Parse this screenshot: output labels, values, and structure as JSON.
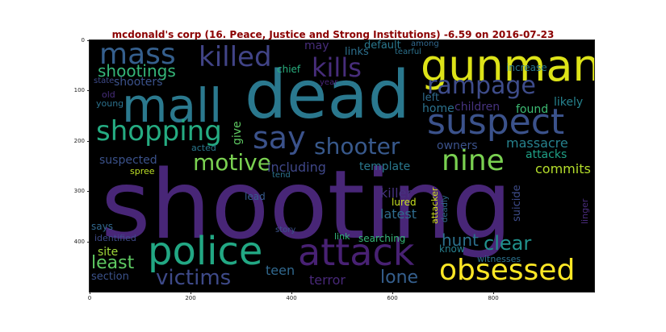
{
  "title": "mcdonald's corp (16. Peace, Justice and Strong Institutions) -6.59 on 2016-07-23",
  "axes": {
    "x_ticks": [
      "0",
      "200",
      "400",
      "600",
      "800"
    ],
    "y_ticks": [
      "0",
      "100",
      "200",
      "300",
      "400"
    ]
  },
  "words": [
    {
      "text": "shooting",
      "color": "#482677"
    },
    {
      "text": "dead",
      "color": "#2a788e"
    },
    {
      "text": "gunman",
      "color": "#dde318"
    },
    {
      "text": "mall",
      "color": "#2b798e"
    },
    {
      "text": "suspect",
      "color": "#3b528b"
    },
    {
      "text": "police",
      "color": "#22a884"
    },
    {
      "text": "attack",
      "color": "#482173"
    },
    {
      "text": "obsessed",
      "color": "#fde725"
    },
    {
      "text": "killed",
      "color": "#414487"
    },
    {
      "text": "kills",
      "color": "#472d7b"
    },
    {
      "text": "mass",
      "color": "#355f8d"
    },
    {
      "text": "shopping",
      "color": "#25ac82"
    },
    {
      "text": "rampage",
      "color": "#3e4c8a"
    },
    {
      "text": "say",
      "color": "#3b528b"
    },
    {
      "text": "shooter",
      "color": "#38598c"
    },
    {
      "text": "nine",
      "color": "#7ad151"
    },
    {
      "text": "motive",
      "color": "#7ad151"
    },
    {
      "text": "shootings",
      "color": "#35b779"
    },
    {
      "text": "victims",
      "color": "#3e4a89"
    },
    {
      "text": "least",
      "color": "#5ec962"
    },
    {
      "text": "clear",
      "color": "#21918c"
    },
    {
      "text": "hunt",
      "color": "#2c718e"
    },
    {
      "text": "lone",
      "color": "#355f8d"
    },
    {
      "text": "terror",
      "color": "#482878"
    },
    {
      "text": "teen",
      "color": "#31688e"
    },
    {
      "text": "site",
      "color": "#9fda3a"
    },
    {
      "text": "section",
      "color": "#3b528b"
    },
    {
      "text": "identified",
      "color": "#3e4a89"
    },
    {
      "text": "says",
      "color": "#31688e"
    },
    {
      "text": "suspected",
      "color": "#3b528b"
    },
    {
      "text": "spree",
      "color": "#bddf26"
    },
    {
      "text": "including",
      "color": "#3f4788"
    },
    {
      "text": "template",
      "color": "#2a788e"
    },
    {
      "text": "massacre",
      "color": "#26828e"
    },
    {
      "text": "attacks",
      "color": "#1fa187"
    },
    {
      "text": "commits",
      "color": "#b5de2b"
    },
    {
      "text": "killer",
      "color": "#46327e"
    },
    {
      "text": "latest",
      "color": "#2f6c8e"
    },
    {
      "text": "lured",
      "color": "#c8e020"
    },
    {
      "text": "lead",
      "color": "#365c8d"
    },
    {
      "text": "searching",
      "color": "#35b779"
    },
    {
      "text": "link",
      "color": "#31b57b"
    },
    {
      "text": "know",
      "color": "#27808e"
    },
    {
      "text": "witnesses",
      "color": "#2c728e"
    },
    {
      "text": "suicide",
      "color": "#3e4c8a"
    },
    {
      "text": "attacker",
      "color": "#d0e11c"
    },
    {
      "text": "deadly",
      "color": "#2f6c8e"
    },
    {
      "text": "linger",
      "color": "#4a2c7d"
    },
    {
      "text": "shooters",
      "color": "#3b528b"
    },
    {
      "text": "give",
      "color": "#5ec962"
    },
    {
      "text": "may",
      "color": "#472d7b"
    },
    {
      "text": "links",
      "color": "#2d708e"
    },
    {
      "text": "default",
      "color": "#2a788e"
    },
    {
      "text": "tearful",
      "color": "#2c728e"
    },
    {
      "text": "among",
      "color": "#31688e"
    },
    {
      "text": "increase",
      "color": "#2a788e"
    },
    {
      "text": "chief",
      "color": "#29af7f"
    },
    {
      "text": "state",
      "color": "#3e4a89"
    },
    {
      "text": "old",
      "color": "#472d7b"
    },
    {
      "text": "young",
      "color": "#2c728e"
    },
    {
      "text": "year",
      "color": "#482576"
    },
    {
      "text": "left",
      "color": "#2f6c8e"
    },
    {
      "text": "home",
      "color": "#2c728e"
    },
    {
      "text": "children",
      "color": "#46337f"
    },
    {
      "text": "found",
      "color": "#3dbc74"
    },
    {
      "text": "likely",
      "color": "#26828e"
    },
    {
      "text": "owners",
      "color": "#3b528b"
    },
    {
      "text": "acted",
      "color": "#2a788e"
    },
    {
      "text": "tend",
      "color": "#2c728e"
    },
    {
      "text": "story",
      "color": "#3b528b"
    }
  ]
}
